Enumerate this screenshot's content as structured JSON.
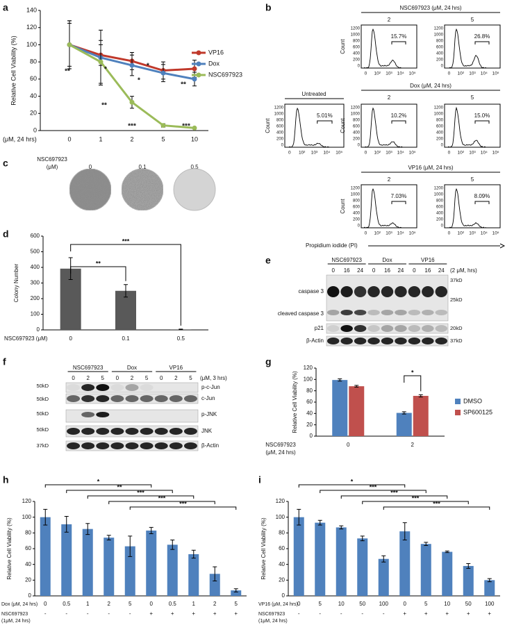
{
  "panel_labels": [
    "a",
    "b",
    "c",
    "d",
    "e",
    "f",
    "g",
    "h",
    "i"
  ],
  "chart_data": [
    {
      "type": "line",
      "ylabel": "Relative Cell Viability (%)",
      "xlabel": "(μM, 24 hrs)",
      "categories": [
        "0",
        "1",
        "2",
        "5",
        "10"
      ],
      "ylim": [
        0,
        140
      ],
      "yticks": [
        0,
        20,
        40,
        60,
        80,
        100,
        120,
        140
      ],
      "series": [
        {
          "name": "VP16",
          "color": "#c0392b",
          "values": [
            100,
            88,
            81,
            70,
            72
          ],
          "errors": [
            28,
            12,
            10,
            10,
            10
          ]
        },
        {
          "name": "Dox",
          "color": "#4f81bd",
          "values": [
            100,
            85,
            76,
            67,
            60
          ],
          "errors": [
            28,
            32,
            12,
            10,
            8
          ]
        },
        {
          "name": "NSC697923",
          "color": "#9bbb59",
          "values": [
            100,
            80,
            33,
            6,
            3
          ],
          "errors": [
            25,
            25,
            7,
            2,
            1
          ]
        }
      ],
      "annotations": [
        "**",
        "*",
        "*",
        "*",
        "**",
        "**",
        "***",
        "***"
      ]
    },
    {
      "type": "bar",
      "ylabel": "Colony Number",
      "xlabel": "NSC697923 (μM)",
      "categories": [
        "0",
        "0.1",
        "0.5"
      ],
      "values": [
        392,
        250,
        3
      ],
      "errors": [
        70,
        40,
        2
      ],
      "color": "#595959",
      "ylim": [
        0,
        600
      ],
      "yticks": [
        0,
        100,
        200,
        300,
        400,
        500,
        600
      ],
      "significance": [
        "**",
        "***"
      ]
    },
    {
      "type": "bar",
      "ylabel": "Relative Cell Viability (%)",
      "xlabel": [
        "NSC697923",
        "(μM, 24 hrs)"
      ],
      "categories": [
        "0",
        "2"
      ],
      "series": [
        {
          "name": "DMSO",
          "color": "#4f81bd",
          "values": [
            99,
            41
          ],
          "errors": [
            2,
            2
          ]
        },
        {
          "name": "SP600125",
          "color": "#c0504d",
          "values": [
            88,
            71
          ],
          "errors": [
            1.5,
            2
          ]
        }
      ],
      "ylim": [
        0,
        120
      ],
      "yticks": [
        0,
        20,
        40,
        60,
        80,
        100,
        120
      ],
      "significance": [
        "*"
      ]
    },
    {
      "type": "bar",
      "ylabel": "Relative Cell Viability (%)",
      "row1_label": "Dox (μM, 24 hrs)",
      "row2_label": [
        "NSC697923",
        "(1μM, 24 hrs)"
      ],
      "categories": [
        "0",
        "0.5",
        "1",
        "2",
        "5",
        "0",
        "0.5",
        "1",
        "2",
        "5"
      ],
      "categories_row2": [
        "-",
        "-",
        "-",
        "-",
        "-",
        "+",
        "+",
        "+",
        "+",
        "+"
      ],
      "values": [
        100,
        91,
        85,
        74,
        63,
        83,
        65,
        53,
        28,
        7
      ],
      "errors": [
        10,
        10,
        7,
        3,
        13,
        4,
        6,
        5,
        9,
        2
      ],
      "color": "#4f81bd",
      "ylim": [
        0,
        120
      ],
      "yticks": [
        0,
        20,
        40,
        60,
        80,
        100,
        120
      ],
      "significance": [
        "*",
        "**",
        "***",
        "***",
        "***"
      ]
    },
    {
      "type": "bar",
      "ylabel": "Relative Cell Viability (%)",
      "row1_label": "VP16 (μM, 24 hrs)",
      "row2_label": [
        "NSC697923",
        "(1μM, 24 hrs)"
      ],
      "categories": [
        "0",
        "5",
        "10",
        "50",
        "100",
        "0",
        "5",
        "10",
        "50",
        "100"
      ],
      "categories_row2": [
        "-",
        "-",
        "-",
        "-",
        "-",
        "+",
        "+",
        "+",
        "+",
        "+"
      ],
      "values": [
        100,
        93,
        87,
        73,
        47,
        82,
        66,
        56,
        38,
        20
      ],
      "errors": [
        10,
        3,
        2,
        3,
        4,
        11,
        2,
        1,
        3,
        2
      ],
      "color": "#4f81bd",
      "ylim": [
        0,
        120
      ],
      "yticks": [
        0,
        20,
        40,
        60,
        80,
        100,
        120
      ],
      "significance": [
        "*",
        "***",
        "***",
        "***",
        "***"
      ]
    }
  ],
  "flow": {
    "rows": [
      {
        "title": "NSC697923 (μM, 24 hrs)",
        "doses": [
          "2",
          "5"
        ],
        "percents": [
          "15.7%",
          "26.8%"
        ]
      },
      {
        "title": "Dox (μM, 24 hrs)",
        "doses": [
          "2",
          "5"
        ],
        "percents": [
          "10.2%",
          "15.0%"
        ]
      },
      {
        "title": "VP16 (μM, 24 hrs)",
        "doses": [
          "2",
          "5"
        ],
        "percents": [
          "7.03%",
          "8.09%"
        ]
      }
    ],
    "untreated": {
      "title": "Untreated",
      "percent": "5.01%"
    },
    "y_label": "Count",
    "x_label": "Propidium iodide (PI)",
    "y_ticks": [
      "0",
      "200",
      "400",
      "600",
      "800",
      "1000",
      "1200"
    ],
    "x_ticks": [
      "0",
      "10²",
      "10³",
      "10⁴",
      "10⁵"
    ]
  },
  "colony": {
    "title": "NSC697923",
    "unit": "(μM)",
    "doses": [
      "0",
      "0.1",
      "0.5"
    ]
  },
  "blot_e": {
    "groups": [
      "NSC697923",
      "Dox",
      "VP16"
    ],
    "condition": "(2 μM, hrs)",
    "lanes": [
      "0",
      "16",
      "24",
      "0",
      "16",
      "24",
      "0",
      "16",
      "24"
    ],
    "bands": [
      "caspase 3",
      "cleaved caspase 3",
      "p21",
      "β-Actin"
    ],
    "sizes": [
      "37kD",
      "25kD",
      "20kD",
      "37kD"
    ]
  },
  "blot_f": {
    "groups": [
      "NSC697923",
      "Dox",
      "VP16"
    ],
    "condition": "(μM, 3 hrs)",
    "lanes": [
      "0",
      "2",
      "5",
      "0",
      "2",
      "5",
      "0",
      "2",
      "5"
    ],
    "sizes": [
      "50kD",
      "50kD",
      "50kD",
      "50kD",
      "37kD"
    ],
    "bands": [
      "p-c-Jun",
      "c-Jun",
      "p-JNK",
      "JNK",
      "β-Actin"
    ]
  }
}
